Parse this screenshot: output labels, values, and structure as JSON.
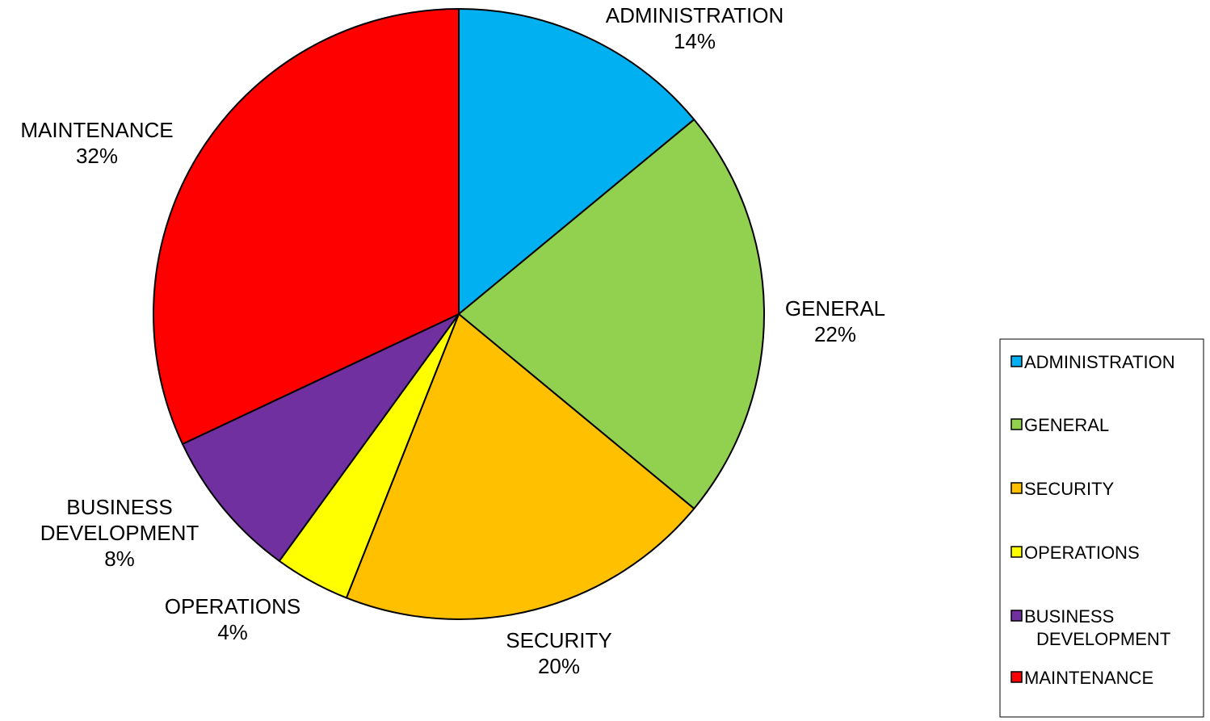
{
  "chart_data": {
    "type": "pie",
    "categories": [
      "ADMINISTRATION",
      "GENERAL",
      "SECURITY",
      "OPERATIONS",
      "BUSINESS DEVELOPMENT",
      "MAINTENANCE"
    ],
    "values": [
      14,
      22,
      20,
      4,
      8,
      32
    ],
    "value_labels": [
      "14%",
      "22%",
      "20%",
      "4%",
      "8%",
      "32%"
    ],
    "colors": [
      "#00B0F0",
      "#92D050",
      "#FFC000",
      "#FFFF00",
      "#7030A0",
      "#FF0000"
    ],
    "start_angle_deg": 0,
    "direction": "clockwise",
    "legend": {
      "position": "right",
      "items": [
        {
          "label": "ADMINISTRATION",
          "color": "#00B0F0"
        },
        {
          "label": "GENERAL",
          "color": "#92D050"
        },
        {
          "label": "SECURITY",
          "color": "#FFC000"
        },
        {
          "label": "OPERATIONS",
          "color": "#FFFF00"
        },
        {
          "label": "BUSINESS DEVELOPMENT",
          "color": "#7030A0"
        },
        {
          "label": "MAINTENANCE",
          "color": "#FF0000"
        }
      ]
    }
  }
}
